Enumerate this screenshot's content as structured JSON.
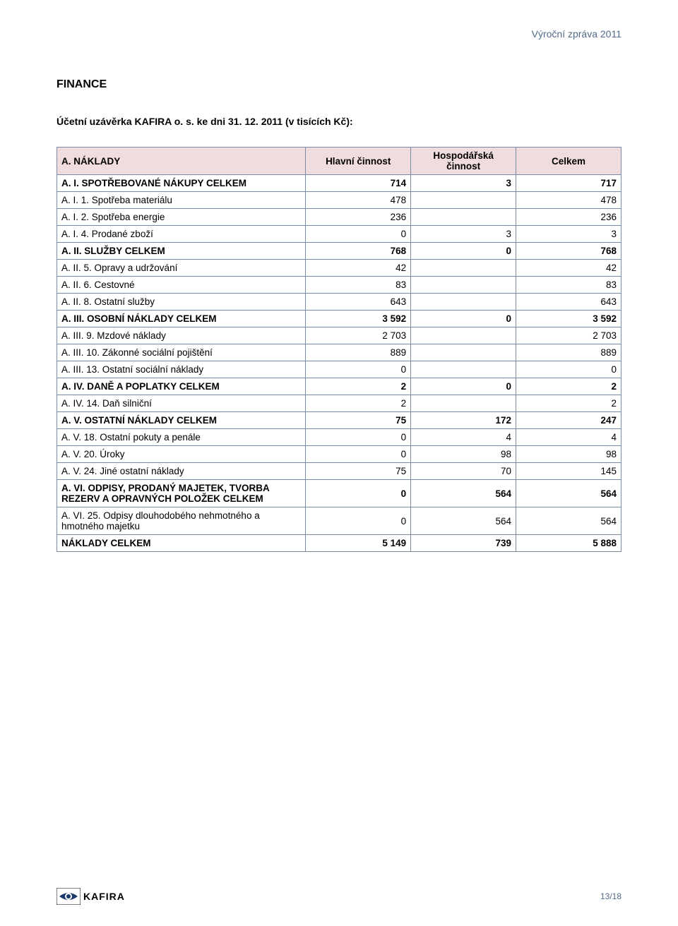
{
  "header_right": "Výroční zpráva 2011",
  "section_title": "FINANCE",
  "subtitle": "Účetní uzávěrka KAFIRA o. s. ke dni 31. 12. 2011 (v tisících Kč):",
  "table": {
    "caption": "A. NÁKLADY",
    "columns": [
      "Hlavní činnost",
      "Hospodářská činnost",
      "Celkem"
    ],
    "rows": [
      {
        "label": "A. I.  SPOTŘEBOVANÉ NÁKUPY CELKEM",
        "c1": "714",
        "c2": "3",
        "c3": "717",
        "bold": true
      },
      {
        "label": "A. I. 1. Spotřeba materiálu",
        "c1": "478",
        "c2": "",
        "c3": "478",
        "bold": false
      },
      {
        "label": "A. I. 2. Spotřeba energie",
        "c1": "236",
        "c2": "",
        "c3": "236",
        "bold": false
      },
      {
        "label": "A. I. 4. Prodané zboží",
        "c1": "0",
        "c2": "3",
        "c3": "3",
        "bold": false
      },
      {
        "label": "A. II.  SLUŽBY CELKEM",
        "c1": "768",
        "c2": "0",
        "c3": "768",
        "bold": true
      },
      {
        "label": "A. II. 5. Opravy a udržování",
        "c1": "42",
        "c2": "",
        "c3": "42",
        "bold": false
      },
      {
        "label": "A. II. 6. Cestovné",
        "c1": "83",
        "c2": "",
        "c3": "83",
        "bold": false
      },
      {
        "label": "A. II. 8. Ostatní služby",
        "c1": "643",
        "c2": "",
        "c3": "643",
        "bold": false
      },
      {
        "label": "A. III.  OSOBNÍ NÁKLADY CELKEM",
        "c1": "3 592",
        "c2": "0",
        "c3": "3 592",
        "bold": true
      },
      {
        "label": "A. III. 9. Mzdové náklady",
        "c1": "2 703",
        "c2": "",
        "c3": "2 703",
        "bold": false
      },
      {
        "label": "A. III. 10. Zákonné sociální pojištění",
        "c1": "889",
        "c2": "",
        "c3": "889",
        "bold": false
      },
      {
        "label": "A. III. 13. Ostatní sociální náklady",
        "c1": "0",
        "c2": "",
        "c3": "0",
        "bold": false
      },
      {
        "label": "A. IV.  DANĚ A POPLATKY CELKEM",
        "c1": "2",
        "c2": "0",
        "c3": "2",
        "bold": true
      },
      {
        "label": "A. IV. 14. Daň silniční",
        "c1": "2",
        "c2": "",
        "c3": "2",
        "bold": false
      },
      {
        "label": "A. V.  OSTATNÍ NÁKLADY CELKEM",
        "c1": "75",
        "c2": "172",
        "c3": "247",
        "bold": true
      },
      {
        "label": "A. V. 18. Ostatní pokuty a penále",
        "c1": "0",
        "c2": "4",
        "c3": "4",
        "bold": false
      },
      {
        "label": "A. V. 20. Úroky",
        "c1": "0",
        "c2": "98",
        "c3": "98",
        "bold": false
      },
      {
        "label": "A. V. 24. Jiné ostatní náklady",
        "c1": "75",
        "c2": "70",
        "c3": "145",
        "bold": false
      },
      {
        "label": "A. VI.  ODPISY, PRODANÝ MAJETEK, TVORBA REZERV A OPRAVNÝCH POLOŽEK CELKEM",
        "c1": "0",
        "c2": "564",
        "c3": "564",
        "bold": true
      },
      {
        "label": "A. VI. 25. Odpisy dlouhodobého nehmotného a hmotného majetku",
        "c1": "0",
        "c2": "564",
        "c3": "564",
        "bold": false
      },
      {
        "label": "NÁKLADY CELKEM",
        "c1": "5 149",
        "c2": "739",
        "c3": "5 888",
        "bold": true
      }
    ]
  },
  "footer": {
    "logo_text": "KAFIRA",
    "page": "13/18"
  },
  "colors": {
    "header_bg": "#f0dcdc",
    "border": "#7a8aa3",
    "accent_text": "#526a8a"
  }
}
